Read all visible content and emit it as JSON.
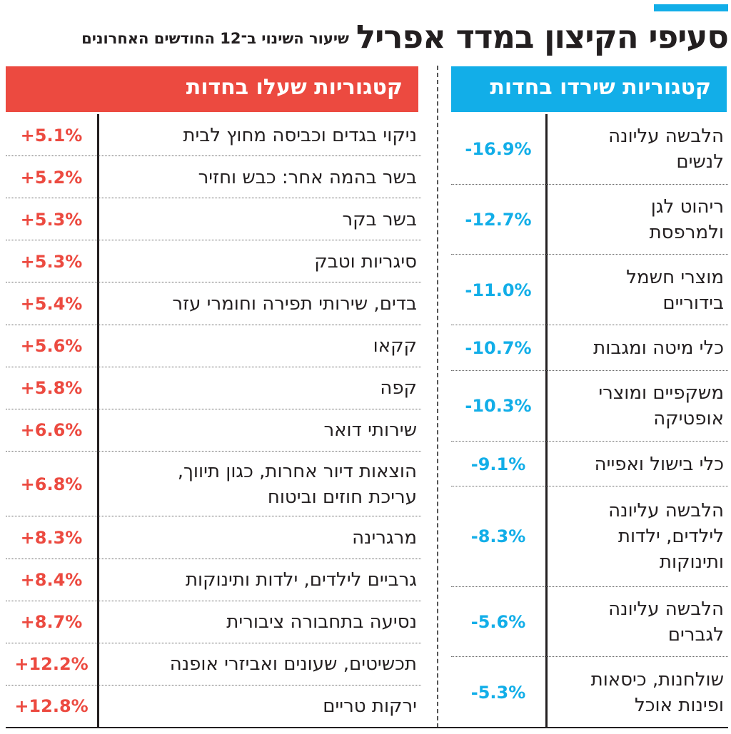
{
  "title": "סעיפי הקיצון במדד אפריל",
  "subtitle": "שיעור השינוי ב־12 החודשים האחרונים",
  "colors": {
    "fell": "#12aee8",
    "rose": "#ec4a40",
    "text": "#231f20"
  },
  "chart_data": [
    {
      "type": "table",
      "title": "קטגוריות שירדו בחדות",
      "rows": [
        {
          "label": "הלבשה עליונה\nלנשים",
          "value": -16.9,
          "display": "-16.9%"
        },
        {
          "label": "ריהוט לגן\nולמרפסת",
          "value": -12.7,
          "display": "-12.7%"
        },
        {
          "label": "מוצרי חשמל\nבידוריים",
          "value": -11.0,
          "display": "-11.0%"
        },
        {
          "label": "כלי מיטה ומגבות",
          "value": -10.7,
          "display": "-10.7%"
        },
        {
          "label": "משקפיים ומוצרי\nאופטיקה",
          "value": -10.3,
          "display": "-10.3%"
        },
        {
          "label": "כלי בישול ואפייה",
          "value": -9.1,
          "display": "-9.1%"
        },
        {
          "label": "הלבשה עליונה\nלילדים, ילדות\nותינוקות",
          "value": -8.3,
          "display": "-8.3%"
        },
        {
          "label": "הלבשה עליונה\nלגברים",
          "value": -5.6,
          "display": "-5.6%"
        },
        {
          "label": "שולחנות, כיסאות\nופינות אוכל",
          "value": -5.3,
          "display": "-5.3%"
        }
      ]
    },
    {
      "type": "table",
      "title": "קטגוריות שעלו בחדות",
      "rows": [
        {
          "label": "ניקוי בגדים וכביסה מחוץ לבית",
          "value": 5.1,
          "display": "+5.1%"
        },
        {
          "label": "בשר בהמה אחר: כבש וחזיר",
          "value": 5.2,
          "display": "+5.2%"
        },
        {
          "label": "בשר בקר",
          "value": 5.3,
          "display": "+5.3%"
        },
        {
          "label": "סיגריות וטבק",
          "value": 5.3,
          "display": "+5.3%"
        },
        {
          "label": "בדים, שירותי תפירה וחומרי עזר",
          "value": 5.4,
          "display": "+5.4%"
        },
        {
          "label": "קקאו",
          "value": 5.6,
          "display": "+5.6%"
        },
        {
          "label": "קפה",
          "value": 5.8,
          "display": "+5.8%"
        },
        {
          "label": "שירותי דואר",
          "value": 6.6,
          "display": "+6.6%"
        },
        {
          "label": "הוצאות דיור אחרות, כגון תיווך,\nעריכת חוזים וביטוח",
          "value": 6.8,
          "display": "+6.8%"
        },
        {
          "label": "מרגרינה",
          "value": 8.3,
          "display": "+8.3%"
        },
        {
          "label": "גרביים לילדים, ילדות ותינוקות",
          "value": 8.4,
          "display": "+8.4%"
        },
        {
          "label": "נסיעה בתחבורה ציבורית",
          "value": 8.7,
          "display": "+8.7%"
        },
        {
          "label": "תכשיטים, שעונים ואביזרי אופנה",
          "value": 12.2,
          "display": "+12.2%"
        },
        {
          "label": "ירקות טריים",
          "value": 12.8,
          "display": "+12.8%"
        }
      ]
    }
  ]
}
